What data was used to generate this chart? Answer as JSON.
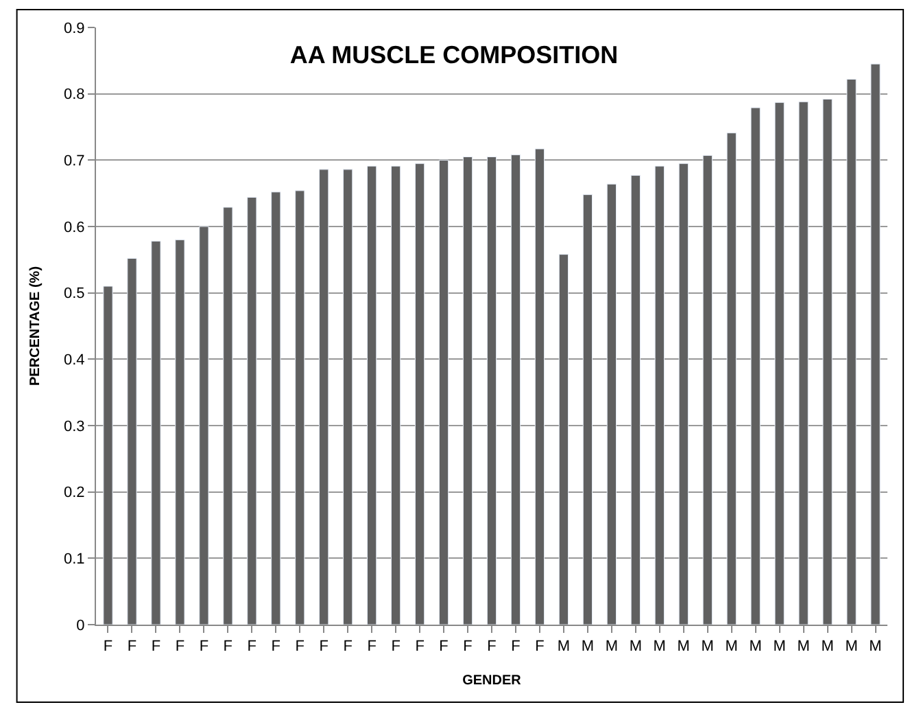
{
  "chart_data": {
    "type": "bar",
    "title": "AA MUSCLE COMPOSITION",
    "xlabel": "GENDER",
    "ylabel": "PERCENTAGE (%)",
    "categories": [
      "F",
      "F",
      "F",
      "F",
      "F",
      "F",
      "F",
      "F",
      "F",
      "F",
      "F",
      "F",
      "F",
      "F",
      "F",
      "F",
      "F",
      "F",
      "F",
      "M",
      "M",
      "M",
      "M",
      "M",
      "M",
      "M",
      "M",
      "M",
      "M",
      "M",
      "M",
      "M",
      "M"
    ],
    "values": [
      0.51,
      0.552,
      0.578,
      0.58,
      0.6,
      0.629,
      0.644,
      0.652,
      0.654,
      0.686,
      0.686,
      0.691,
      0.691,
      0.695,
      0.7,
      0.705,
      0.705,
      0.708,
      0.717,
      0.558,
      0.648,
      0.664,
      0.677,
      0.691,
      0.695,
      0.707,
      0.741,
      0.779,
      0.787,
      0.788,
      0.792,
      0.822,
      0.845
    ],
    "color": "#606060",
    "ylim": [
      0,
      0.9
    ],
    "yticks": [
      0,
      0.1,
      0.2,
      0.3,
      0.4,
      0.5,
      0.6,
      0.7,
      0.8,
      0.9
    ],
    "grid": "y"
  }
}
